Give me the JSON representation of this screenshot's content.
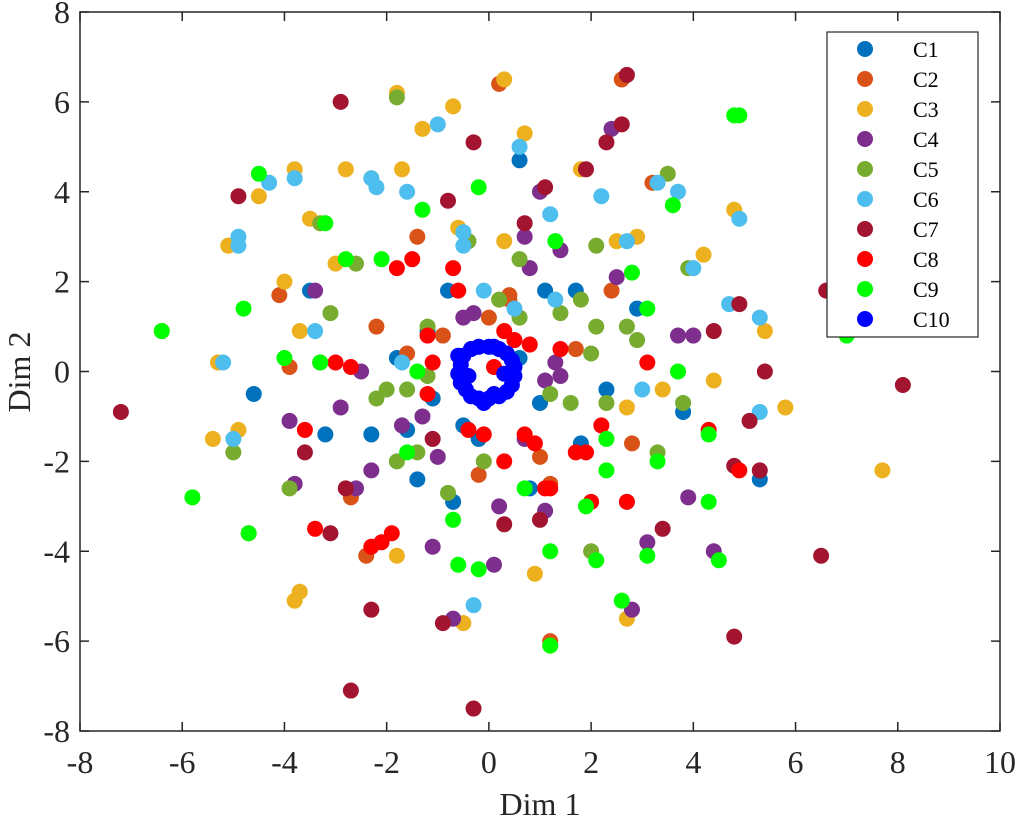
{
  "chart_data": {
    "type": "scatter",
    "xlabel": "Dim 1",
    "ylabel": "Dim 2",
    "xlim": [
      -8,
      10
    ],
    "ylim": [
      -8,
      8
    ],
    "xticks": [
      "-8",
      "-6",
      "-4",
      "-2",
      "0",
      "2",
      "4",
      "6",
      "8",
      "10"
    ],
    "yticks": [
      "-8",
      "-6",
      "-4",
      "-2",
      "0",
      "2",
      "4",
      "6",
      "8"
    ],
    "grid": false,
    "legend_position": "top-right",
    "series": [
      {
        "name": "C1",
        "color": "#0072BD",
        "points": [
          [
            -1.8,
            0.3
          ],
          [
            -1.1,
            -0.6
          ],
          [
            -0.8,
            1.8
          ],
          [
            1.1,
            1.8
          ],
          [
            1.7,
            1.8
          ],
          [
            -2.3,
            -1.4
          ],
          [
            -1.6,
            -1.3
          ],
          [
            -0.7,
            -2.9
          ],
          [
            0.6,
            4.7
          ],
          [
            0.8,
            -2.6
          ],
          [
            2.3,
            -0.4
          ],
          [
            3.8,
            -0.9
          ],
          [
            5.3,
            -2.4
          ],
          [
            -4.6,
            -0.5
          ],
          [
            -3.2,
            -1.4
          ],
          [
            1.8,
            -1.6
          ],
          [
            -0.5,
            -1.2
          ],
          [
            1.0,
            -0.7
          ],
          [
            -1.4,
            -2.4
          ],
          [
            -3.5,
            1.8
          ],
          [
            -1.2,
            0.9
          ],
          [
            0.6,
            0.3
          ],
          [
            -0.2,
            -1.5
          ],
          [
            2.9,
            1.4
          ]
        ]
      },
      {
        "name": "C2",
        "color": "#D95319",
        "points": [
          [
            -6.4,
            0.9
          ],
          [
            -3.9,
            0.1
          ],
          [
            -4.1,
            1.7
          ],
          [
            -2.4,
            -4.1
          ],
          [
            -2.7,
            -2.8
          ],
          [
            -1.4,
            3.0
          ],
          [
            -0.9,
            0.8
          ],
          [
            0.2,
            6.4
          ],
          [
            0.4,
            1.6
          ],
          [
            -0.2,
            -2.3
          ],
          [
            1.0,
            -1.9
          ],
          [
            1.2,
            -2.5
          ],
          [
            2.6,
            6.5
          ],
          [
            2.8,
            -1.6
          ],
          [
            3.2,
            4.2
          ],
          [
            1.2,
            -6.0
          ],
          [
            -2.2,
            1.0
          ],
          [
            -1.6,
            0.4
          ],
          [
            0.4,
            1.7
          ],
          [
            2.4,
            1.8
          ],
          [
            -4.7,
            -3.6
          ],
          [
            0.0,
            1.2
          ],
          [
            1.7,
            0.5
          ]
        ]
      },
      {
        "name": "C3",
        "color": "#EDB120",
        "points": [
          [
            -5.1,
            2.8
          ],
          [
            -4.0,
            2.0
          ],
          [
            -3.8,
            4.5
          ],
          [
            -3.5,
            3.4
          ],
          [
            -3.0,
            2.4
          ],
          [
            -2.8,
            4.5
          ],
          [
            -1.7,
            4.5
          ],
          [
            -1.8,
            6.2
          ],
          [
            -1.3,
            5.4
          ],
          [
            -0.7,
            5.9
          ],
          [
            0.3,
            2.9
          ],
          [
            0.3,
            6.5
          ],
          [
            0.7,
            5.3
          ],
          [
            1.8,
            4.5
          ],
          [
            2.5,
            2.9
          ],
          [
            -5.3,
            0.2
          ],
          [
            -5.4,
            -1.5
          ],
          [
            -4.9,
            -1.3
          ],
          [
            -3.8,
            -5.1
          ],
          [
            -3.7,
            -4.9
          ],
          [
            -1.8,
            -4.1
          ],
          [
            -0.5,
            -5.6
          ],
          [
            0.9,
            -4.5
          ],
          [
            2.7,
            -5.5
          ],
          [
            2.7,
            -0.8
          ],
          [
            3.4,
            -0.4
          ],
          [
            4.4,
            -0.2
          ],
          [
            4.2,
            2.6
          ],
          [
            4.8,
            3.6
          ],
          [
            5.4,
            0.9
          ],
          [
            5.8,
            -0.8
          ],
          [
            7.7,
            -2.2
          ],
          [
            -2.3,
            4.3
          ],
          [
            -3.7,
            0.9
          ],
          [
            -4.5,
            3.9
          ],
          [
            2.9,
            3.0
          ],
          [
            -0.6,
            3.2
          ]
        ]
      },
      {
        "name": "C4",
        "color": "#7E2F8E",
        "points": [
          [
            -3.4,
            1.8
          ],
          [
            -2.9,
            -0.8
          ],
          [
            -2.5,
            0.0
          ],
          [
            -2.3,
            -2.2
          ],
          [
            -2.6,
            -2.6
          ],
          [
            -1.7,
            -1.2
          ],
          [
            -1.3,
            -1.0
          ],
          [
            -1.1,
            -3.9
          ],
          [
            -1.0,
            -1.9
          ],
          [
            -0.7,
            -5.5
          ],
          [
            -0.5,
            1.2
          ],
          [
            -0.3,
            1.3
          ],
          [
            0.1,
            -4.3
          ],
          [
            0.2,
            -3.0
          ],
          [
            0.8,
            2.3
          ],
          [
            0.7,
            3.0
          ],
          [
            1.1,
            -0.2
          ],
          [
            1.1,
            -3.1
          ],
          [
            1.4,
            -0.1
          ],
          [
            1.3,
            0.2
          ],
          [
            1.4,
            2.7
          ],
          [
            2.5,
            2.1
          ],
          [
            2.8,
            -5.3
          ],
          [
            3.1,
            -3.8
          ],
          [
            2.4,
            5.4
          ],
          [
            4.4,
            -4.0
          ],
          [
            3.9,
            -2.8
          ],
          [
            1.0,
            4.0
          ],
          [
            -3.9,
            -1.1
          ],
          [
            -3.8,
            -2.5
          ],
          [
            4.0,
            0.8
          ],
          [
            3.7,
            0.8
          ],
          [
            0.7,
            -1.5
          ]
        ]
      },
      {
        "name": "C5",
        "color": "#77AC30",
        "points": [
          [
            -3.3,
            3.3
          ],
          [
            -3.1,
            1.3
          ],
          [
            -2.6,
            2.4
          ],
          [
            -2.0,
            -0.4
          ],
          [
            -1.8,
            -2.0
          ],
          [
            -1.6,
            -0.4
          ],
          [
            -1.4,
            -1.8
          ],
          [
            -0.8,
            -2.7
          ],
          [
            -0.4,
            2.9
          ],
          [
            0.2,
            1.6
          ],
          [
            0.6,
            2.5
          ],
          [
            0.6,
            1.2
          ],
          [
            1.2,
            -0.5
          ],
          [
            1.4,
            1.3
          ],
          [
            1.8,
            1.6
          ],
          [
            2.1,
            1.0
          ],
          [
            2.1,
            2.8
          ],
          [
            2.3,
            -0.7
          ],
          [
            2.7,
            1.0
          ],
          [
            2.9,
            0.7
          ],
          [
            3.5,
            4.4
          ],
          [
            3.3,
            -1.8
          ],
          [
            3.9,
            2.3
          ],
          [
            -1.2,
            -0.1
          ],
          [
            -0.1,
            -2.0
          ],
          [
            1.6,
            -0.7
          ],
          [
            -5.0,
            -1.8
          ],
          [
            -3.9,
            -2.6
          ],
          [
            -2.2,
            -0.6
          ],
          [
            2.0,
            -4.0
          ],
          [
            -1.8,
            6.1
          ],
          [
            -1.2,
            1.0
          ],
          [
            2.0,
            0.4
          ],
          [
            3.8,
            -0.7
          ]
        ]
      },
      {
        "name": "C6",
        "color": "#4DBEEE",
        "points": [
          [
            -5.2,
            0.2
          ],
          [
            -4.9,
            3.0
          ],
          [
            -4.3,
            4.2
          ],
          [
            -3.4,
            0.9
          ],
          [
            -2.2,
            4.1
          ],
          [
            -1.6,
            4.0
          ],
          [
            -1.0,
            5.5
          ],
          [
            -0.5,
            2.8
          ],
          [
            -0.5,
            3.1
          ],
          [
            -0.1,
            1.8
          ],
          [
            0.5,
            1.4
          ],
          [
            0.6,
            5.0
          ],
          [
            1.2,
            3.5
          ],
          [
            1.3,
            1.6
          ],
          [
            2.2,
            3.9
          ],
          [
            2.7,
            2.9
          ],
          [
            3.3,
            4.2
          ],
          [
            3.7,
            4.0
          ],
          [
            4.0,
            2.3
          ],
          [
            4.7,
            1.5
          ],
          [
            4.9,
            3.4
          ],
          [
            5.3,
            1.2
          ],
          [
            5.3,
            -0.9
          ],
          [
            -5.0,
            -1.5
          ],
          [
            -1.7,
            0.2
          ],
          [
            -0.3,
            -5.2
          ],
          [
            3.0,
            -0.4
          ],
          [
            -2.3,
            4.3
          ],
          [
            -3.8,
            4.3
          ],
          [
            2.7,
            -2.9
          ],
          [
            -4.9,
            2.8
          ]
        ]
      },
      {
        "name": "C7",
        "color": "#A2142F",
        "points": [
          [
            -7.2,
            -0.9
          ],
          [
            -4.9,
            3.9
          ],
          [
            -3.3,
            0.2
          ],
          [
            -3.1,
            -3.6
          ],
          [
            -2.9,
            6.0
          ],
          [
            -2.8,
            -2.6
          ],
          [
            -2.7,
            -7.1
          ],
          [
            -2.3,
            -5.3
          ],
          [
            -1.1,
            -1.5
          ],
          [
            -0.9,
            -5.6
          ],
          [
            -0.3,
            5.1
          ],
          [
            -0.3,
            -7.5
          ],
          [
            0.7,
            3.3
          ],
          [
            1.0,
            -3.3
          ],
          [
            1.1,
            4.1
          ],
          [
            1.9,
            4.5
          ],
          [
            2.3,
            5.1
          ],
          [
            2.6,
            5.5
          ],
          [
            2.7,
            6.6
          ],
          [
            3.4,
            -3.5
          ],
          [
            4.4,
            0.9
          ],
          [
            4.9,
            1.5
          ],
          [
            5.1,
            -1.1
          ],
          [
            5.3,
            -2.2
          ],
          [
            4.8,
            -2.1
          ],
          [
            4.8,
            -5.9
          ],
          [
            5.4,
            0.0
          ],
          [
            6.5,
            -4.1
          ],
          [
            6.6,
            1.8
          ],
          [
            8.1,
            -0.3
          ],
          [
            0.3,
            -3.4
          ],
          [
            -3.6,
            -1.8
          ],
          [
            -0.8,
            3.8
          ]
        ]
      },
      {
        "name": "C8",
        "color": "#FF0000",
        "points": [
          [
            -3.4,
            -3.5
          ],
          [
            -3.0,
            0.2
          ],
          [
            -2.7,
            0.1
          ],
          [
            -2.3,
            -3.9
          ],
          [
            -2.1,
            -3.8
          ],
          [
            -1.9,
            -3.6
          ],
          [
            -1.8,
            2.3
          ],
          [
            -1.5,
            2.5
          ],
          [
            -1.2,
            -0.5
          ],
          [
            -1.2,
            0.8
          ],
          [
            -1.1,
            0.2
          ],
          [
            -0.7,
            2.3
          ],
          [
            -0.6,
            1.8
          ],
          [
            -0.4,
            -1.3
          ],
          [
            -0.1,
            -1.4
          ],
          [
            0.1,
            0.1
          ],
          [
            0.3,
            -2.0
          ],
          [
            0.7,
            -1.4
          ],
          [
            0.9,
            -1.6
          ],
          [
            1.1,
            -2.6
          ],
          [
            1.2,
            -2.6
          ],
          [
            1.4,
            0.5
          ],
          [
            1.7,
            -1.8
          ],
          [
            1.9,
            -1.8
          ],
          [
            2.2,
            -1.2
          ],
          [
            2.7,
            -2.9
          ],
          [
            3.1,
            0.2
          ],
          [
            4.3,
            -1.3
          ],
          [
            4.9,
            -2.2
          ],
          [
            0.8,
            0.6
          ],
          [
            0.3,
            0.9
          ],
          [
            -3.6,
            -1.3
          ],
          [
            2.0,
            -2.9
          ],
          [
            0.5,
            0.7
          ]
        ]
      },
      {
        "name": "C9",
        "color": "#00FF00",
        "points": [
          [
            -6.4,
            0.9
          ],
          [
            -5.8,
            -2.8
          ],
          [
            -4.8,
            1.4
          ],
          [
            -4.7,
            -3.6
          ],
          [
            -4.0,
            0.3
          ],
          [
            -3.3,
            0.2
          ],
          [
            -3.2,
            3.3
          ],
          [
            -2.8,
            2.5
          ],
          [
            -2.1,
            2.5
          ],
          [
            -1.6,
            -1.8
          ],
          [
            -1.4,
            0.0
          ],
          [
            -1.3,
            3.6
          ],
          [
            -0.7,
            -3.3
          ],
          [
            -0.2,
            4.1
          ],
          [
            -0.6,
            -4.3
          ],
          [
            -0.2,
            -4.4
          ],
          [
            0.7,
            -2.6
          ],
          [
            1.2,
            -4.0
          ],
          [
            1.2,
            -6.1
          ],
          [
            1.3,
            2.9
          ],
          [
            1.9,
            -3.0
          ],
          [
            2.1,
            -4.2
          ],
          [
            2.3,
            -2.2
          ],
          [
            2.6,
            -5.1
          ],
          [
            2.8,
            2.2
          ],
          [
            3.1,
            1.4
          ],
          [
            3.1,
            -4.1
          ],
          [
            3.3,
            -2.0
          ],
          [
            3.6,
            3.7
          ],
          [
            3.7,
            0.0
          ],
          [
            4.3,
            -1.4
          ],
          [
            4.3,
            -2.9
          ],
          [
            4.5,
            -4.2
          ],
          [
            4.8,
            5.7
          ],
          [
            4.9,
            5.7
          ],
          [
            7.0,
            0.8
          ],
          [
            -4.5,
            4.4
          ],
          [
            2.3,
            -1.5
          ]
        ]
      },
      {
        "name": "C10",
        "color": "#0000FF",
        "points": [
          [
            0.0,
            0.55
          ],
          [
            0.2,
            0.5
          ],
          [
            0.35,
            0.4
          ],
          [
            0.45,
            0.25
          ],
          [
            0.5,
            0.1
          ],
          [
            0.5,
            -0.1
          ],
          [
            0.45,
            -0.3
          ],
          [
            0.35,
            -0.45
          ],
          [
            0.2,
            -0.55
          ],
          [
            0.0,
            -0.6
          ],
          [
            -0.2,
            -0.6
          ],
          [
            -0.35,
            -0.55
          ],
          [
            -0.45,
            -0.4
          ],
          [
            -0.55,
            -0.25
          ],
          [
            -0.6,
            -0.05
          ],
          [
            -0.55,
            0.15
          ],
          [
            -0.5,
            0.35
          ],
          [
            -0.35,
            0.5
          ],
          [
            -0.2,
            0.55
          ],
          [
            0.1,
            0.55
          ],
          [
            -0.1,
            -0.7
          ],
          [
            0.1,
            -0.5
          ],
          [
            -0.6,
            0.35
          ],
          [
            -0.4,
            -0.1
          ],
          [
            0.3,
            -0.05
          ]
        ]
      }
    ]
  }
}
